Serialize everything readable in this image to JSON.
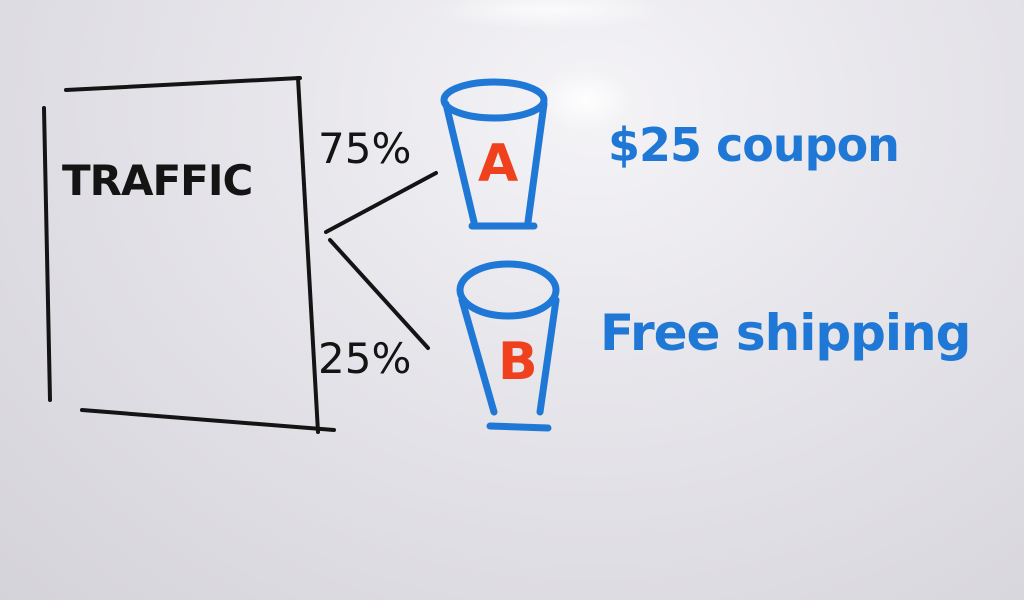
{
  "traffic_box": {
    "label": "TRAFFIC"
  },
  "splits": [
    {
      "percent": "75%"
    },
    {
      "percent": "25%"
    }
  ],
  "variants": [
    {
      "letter": "A",
      "offer": "$25 coupon"
    },
    {
      "letter": "B",
      "offer": "Free shipping"
    }
  ],
  "colors": {
    "board": "#e6e5ea",
    "black_ink": "#141414",
    "blue_ink": "#1f78d6",
    "red_ink": "#f0411e"
  }
}
